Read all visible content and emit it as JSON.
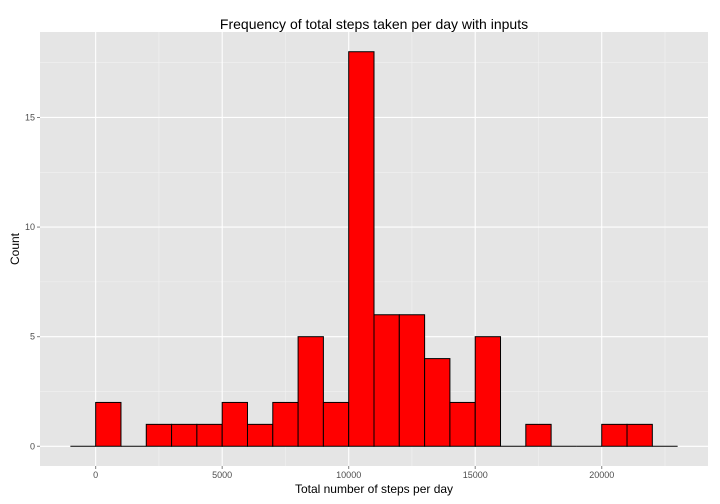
{
  "chart_data": {
    "type": "bar",
    "title": "Frequency of total steps taken per day with inputs",
    "xlabel": "Total number of steps per day",
    "ylabel": "Count",
    "bin_width": 1000,
    "bins": [
      {
        "start": -1000,
        "end": 0,
        "count": 0
      },
      {
        "start": 0,
        "end": 1000,
        "count": 2
      },
      {
        "start": 1000,
        "end": 2000,
        "count": 0
      },
      {
        "start": 2000,
        "end": 3000,
        "count": 1
      },
      {
        "start": 3000,
        "end": 4000,
        "count": 1
      },
      {
        "start": 4000,
        "end": 5000,
        "count": 1
      },
      {
        "start": 5000,
        "end": 6000,
        "count": 2
      },
      {
        "start": 6000,
        "end": 7000,
        "count": 1
      },
      {
        "start": 7000,
        "end": 8000,
        "count": 2
      },
      {
        "start": 8000,
        "end": 9000,
        "count": 5
      },
      {
        "start": 9000,
        "end": 10000,
        "count": 2
      },
      {
        "start": 10000,
        "end": 11000,
        "count": 18
      },
      {
        "start": 11000,
        "end": 12000,
        "count": 6
      },
      {
        "start": 12000,
        "end": 13000,
        "count": 6
      },
      {
        "start": 13000,
        "end": 14000,
        "count": 4
      },
      {
        "start": 14000,
        "end": 15000,
        "count": 2
      },
      {
        "start": 15000,
        "end": 16000,
        "count": 5
      },
      {
        "start": 16000,
        "end": 17000,
        "count": 0
      },
      {
        "start": 17000,
        "end": 18000,
        "count": 1
      },
      {
        "start": 18000,
        "end": 19000,
        "count": 0
      },
      {
        "start": 19000,
        "end": 20000,
        "count": 0
      },
      {
        "start": 20000,
        "end": 21000,
        "count": 1
      },
      {
        "start": 21000,
        "end": 22000,
        "count": 1
      },
      {
        "start": 22000,
        "end": 23000,
        "count": 0
      }
    ],
    "xlim": [
      -2200,
      24200
    ],
    "ylim": [
      -0.9,
      18.9
    ],
    "x_ticks": [
      0,
      5000,
      10000,
      15000,
      20000
    ],
    "x_tick_labels": [
      "0",
      "5000",
      "10000",
      "15000",
      "20000"
    ],
    "y_ticks": [
      0,
      5,
      10,
      15
    ],
    "y_tick_labels": [
      "0",
      "5",
      "10",
      "15"
    ],
    "grid": true,
    "legend": "none",
    "colors": {
      "panel_background": "#e5e5e5",
      "grid_major": "#ffffff",
      "grid_minor": "#f2f2f2",
      "bar_fill": "#ff0000",
      "bar_outline": "#000000"
    }
  }
}
